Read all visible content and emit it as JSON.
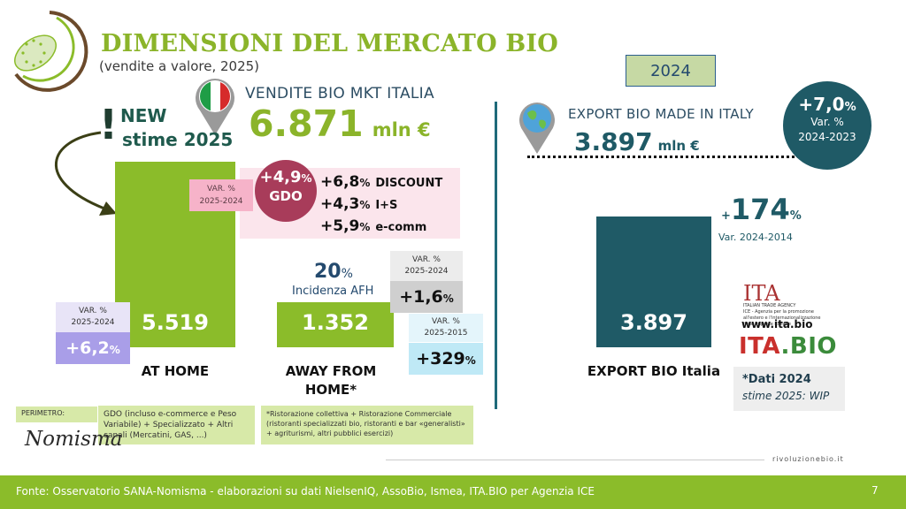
{
  "header": {
    "title": "DIMENSIONI DEL MERCATO BIO",
    "subtitle": "(vendite a valore, 2025)",
    "year_box": "2024"
  },
  "vendite": {
    "label": "VENDITE BIO MKT ITALIA",
    "value": "6.871",
    "unit": "mln €"
  },
  "new_stime": {
    "line1": "NEW",
    "line2": "stime 2025",
    "exclaim": "!"
  },
  "gdo": {
    "var_label_1": "VAR. %",
    "var_label_2": "2025-2024",
    "value": "+4,9",
    "pct": "%",
    "label": "GDO",
    "sublines": [
      {
        "value": "+6,8",
        "pct": "%",
        "label": "DISCOUNT"
      },
      {
        "value": "+4,3",
        "pct": "%",
        "label": "I+S"
      },
      {
        "value": "+5,9",
        "pct": "%",
        "label": "e-comm"
      }
    ]
  },
  "afh": {
    "value": "20",
    "pct": "%",
    "label": "Incidenza AFH",
    "var_label_1": "VAR. %",
    "var_label_2": "2025-2024",
    "var_value": "+1,6",
    "var_pct": "%"
  },
  "at_home_var": {
    "label_1": "VAR. %",
    "label_2": "2025-2024",
    "value": "+6,2",
    "pct": "%"
  },
  "away_var": {
    "label_1": "VAR. %",
    "label_2": "2025-2015",
    "value": "+329",
    "pct": "%"
  },
  "export": {
    "label": "EXPORT BIO MADE IN ITALY",
    "value": "3.897",
    "unit": "mln €",
    "circle_value": "+7,0",
    "circle_pct": "%",
    "circle_l1": "Var. %",
    "circle_l2": "2024-2023",
    "long_var": "+174",
    "long_var_plus": "+",
    "long_var_num": "174",
    "long_var_pct": "%",
    "long_var_label": "Var. 2024-2014"
  },
  "chart_data": {
    "type": "bar",
    "categories": [
      "AT HOME",
      "AWAY FROM HOME*",
      "EXPORT BIO Italia"
    ],
    "values": [
      5519,
      1352,
      3897
    ],
    "value_labels": [
      "5.519",
      "1.352",
      "3.897"
    ],
    "unit": "mln €",
    "colors": [
      "#8bbc2a",
      "#8bbc2a",
      "#1f5a66"
    ]
  },
  "logos": {
    "ita": "ITA",
    "ita_sub1": "ITALIAN TRADE AGENCY",
    "ita_sub2": "ICE - Agenzia per la promozione all'estero e l'internazionalizzazione delle imprese italiane",
    "ita_url": "www.ita.bio",
    "itabio_a": "ITA",
    "itabio_b": ".BIO",
    "nomisma": "Nomisma"
  },
  "note": {
    "line1": "*Dati 2024",
    "line2": "stime 2025: WIP"
  },
  "perimetro": {
    "tag": "PERIMETRO:",
    "desc": "GDO (incluso e-commerce e Peso Variabile) + Specializzato + Altri canali (Mercatini, GAS, ...)",
    "footnote": "*Ristorazione collettiva + Ristorazione Commerciale (ristoranti specializzati bio, ristoranti e bar «generalisti» + agriturismi, altri pubblici esercizi)"
  },
  "footer": {
    "site": "rivoluzionebio.it",
    "source": "Fonte: Osservatorio SANA-Nomisma - elaborazioni su dati NielsenIQ, AssoBio, Ismea, ITA.BIO per Agenzia ICE",
    "page": "7"
  }
}
